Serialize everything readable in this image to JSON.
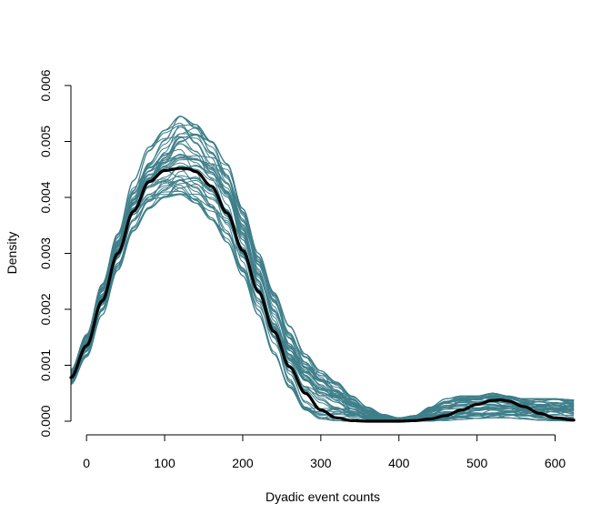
{
  "chart_data": {
    "type": "line",
    "title": "",
    "xlabel": "Dyadic event counts",
    "ylabel": "Density",
    "xlim": [
      -20,
      625
    ],
    "ylim": [
      0,
      0.006
    ],
    "x_ticks": [
      0,
      100,
      200,
      300,
      400,
      500,
      600
    ],
    "y_ticks": [
      0.0,
      0.001,
      0.002,
      0.003,
      0.004,
      0.005,
      0.006
    ],
    "x_tick_labels": [
      "0",
      "100",
      "200",
      "300",
      "400",
      "500",
      "600"
    ],
    "y_tick_labels": [
      "0.000",
      "0.001",
      "0.002",
      "0.003",
      "0.004",
      "0.005",
      "0.006"
    ],
    "grid": false,
    "legend": "none",
    "colors": {
      "simulated": "#3f7f8a",
      "observed": "#000000"
    },
    "observed": {
      "x": [
        -20,
        0,
        20,
        40,
        60,
        80,
        100,
        120,
        130,
        140,
        160,
        180,
        200,
        220,
        240,
        260,
        280,
        300,
        320,
        340,
        360,
        380,
        400,
        420,
        440,
        460,
        480,
        500,
        520,
        530,
        540,
        560,
        580,
        600,
        625
      ],
      "y": [
        0.00078,
        0.00135,
        0.00215,
        0.003,
        0.00375,
        0.00428,
        0.00448,
        0.00452,
        0.00451,
        0.00446,
        0.0042,
        0.00372,
        0.00305,
        0.00232,
        0.0016,
        0.00097,
        0.0005,
        0.0002,
        6e-05,
        1e-05,
        0.0,
        0.0,
        0.0,
        1e-05,
        4e-05,
        0.0001,
        0.0002,
        0.0003,
        0.00037,
        0.00038,
        0.00036,
        0.00026,
        0.00014,
        6e-05,
        2e-05
      ]
    },
    "simulated": {
      "count": 50,
      "x": [
        -20,
        0,
        20,
        40,
        60,
        80,
        100,
        120,
        140,
        160,
        180,
        200,
        220,
        240,
        260,
        280,
        300,
        320,
        340,
        360,
        380,
        400,
        420,
        440,
        460,
        480,
        500,
        520,
        540,
        560,
        580,
        600,
        625
      ],
      "y_envelope": {
        "lower": [
          0.00066,
          0.00115,
          0.0019,
          0.0027,
          0.0034,
          0.0038,
          0.004,
          0.00405,
          0.0039,
          0.0036,
          0.0032,
          0.0026,
          0.0019,
          0.0012,
          0.0006,
          0.0002,
          4e-05,
          1e-05,
          0.0,
          0.0,
          0.0,
          0.0,
          0.0,
          0.0,
          1e-05,
          3e-05,
          5e-05,
          6e-05,
          6e-05,
          4e-05,
          2e-05,
          1e-05,
          0.0
        ],
        "upper": [
          0.00092,
          0.00155,
          0.00245,
          0.00335,
          0.0043,
          0.0049,
          0.0052,
          0.00545,
          0.0053,
          0.005,
          0.0046,
          0.0038,
          0.003,
          0.0023,
          0.0017,
          0.0012,
          0.0009,
          0.0007,
          0.00045,
          0.00025,
          0.00012,
          6e-05,
          0.0001,
          0.00025,
          0.0004,
          0.00045,
          0.00045,
          0.0005,
          0.00045,
          0.0004,
          0.0004,
          0.0004,
          0.00038
        ]
      }
    }
  }
}
